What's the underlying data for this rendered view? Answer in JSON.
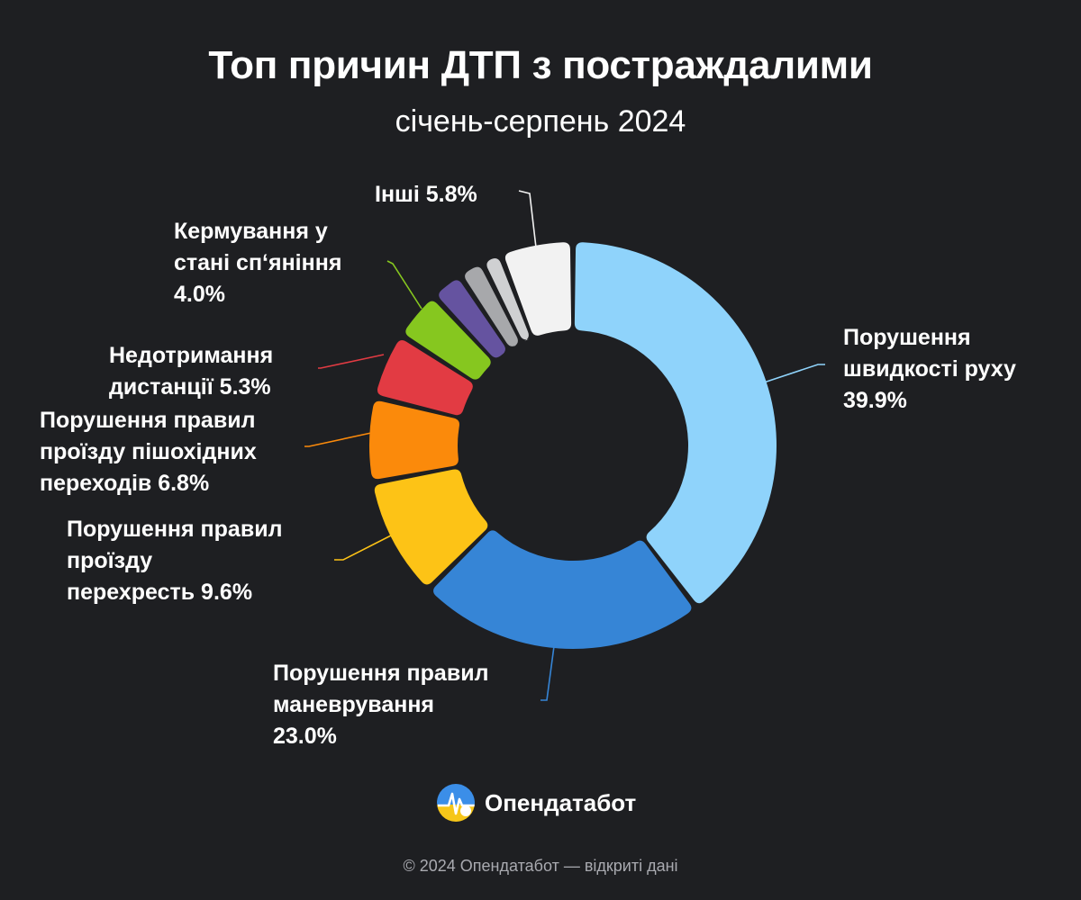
{
  "title": "Топ причин ДТП з постраждалими",
  "subtitle": "січень-серпень 2024",
  "chart_data": {
    "type": "pie",
    "style": "donut",
    "unit": "%",
    "legend": "none",
    "series": [
      {
        "label_lines": [
          "Порушення",
          "швидкості руху",
          "39.9%"
        ],
        "value": 39.9,
        "color": "#8fd3fb",
        "label_side": "right"
      },
      {
        "label_lines": [
          "Порушення правил",
          "маневрування",
          "23.0%"
        ],
        "value": 23.0,
        "color": "#3685d6",
        "label_side": "right"
      },
      {
        "label_lines": [
          "Порушення правил",
          "проїзду",
          "перехресть 9.6%"
        ],
        "value": 9.6,
        "color": "#fdc316",
        "label_side": "left"
      },
      {
        "label_lines": [
          "Порушення правил",
          "проїзду пішохідних",
          "переходів 6.8%"
        ],
        "value": 6.8,
        "color": "#fb8a0b",
        "label_side": "left"
      },
      {
        "label_lines": [
          "Недотримання",
          "дистанції 5.3%"
        ],
        "value": 5.3,
        "color": "#e23b43",
        "label_side": "left"
      },
      {
        "label_lines": [
          "Кермування у",
          "стані сп‘яніння",
          "4.0%"
        ],
        "value": 4.0,
        "color": "#86c71f",
        "label_side": "left"
      },
      {
        "label_lines": [],
        "value": 2.6,
        "color": "#6553a0",
        "label_side": "none"
      },
      {
        "label_lines": [],
        "value": 2.0,
        "color": "#a7a8ab",
        "label_side": "none"
      },
      {
        "label_lines": [],
        "value": 1.6,
        "color": "#cfd0d2",
        "label_side": "none"
      },
      {
        "label_lines": [
          "Інші 5.8%"
        ],
        "value": 5.8,
        "color": "#f2f2f2",
        "label_side": "left"
      }
    ]
  },
  "brand": {
    "name": "Опендатабот",
    "icon": "opendatabot-logo-icon",
    "colors": [
      "#3b8ee8",
      "#f6c619"
    ]
  },
  "footer": "© 2024 Опендатабот — відкриті дані"
}
